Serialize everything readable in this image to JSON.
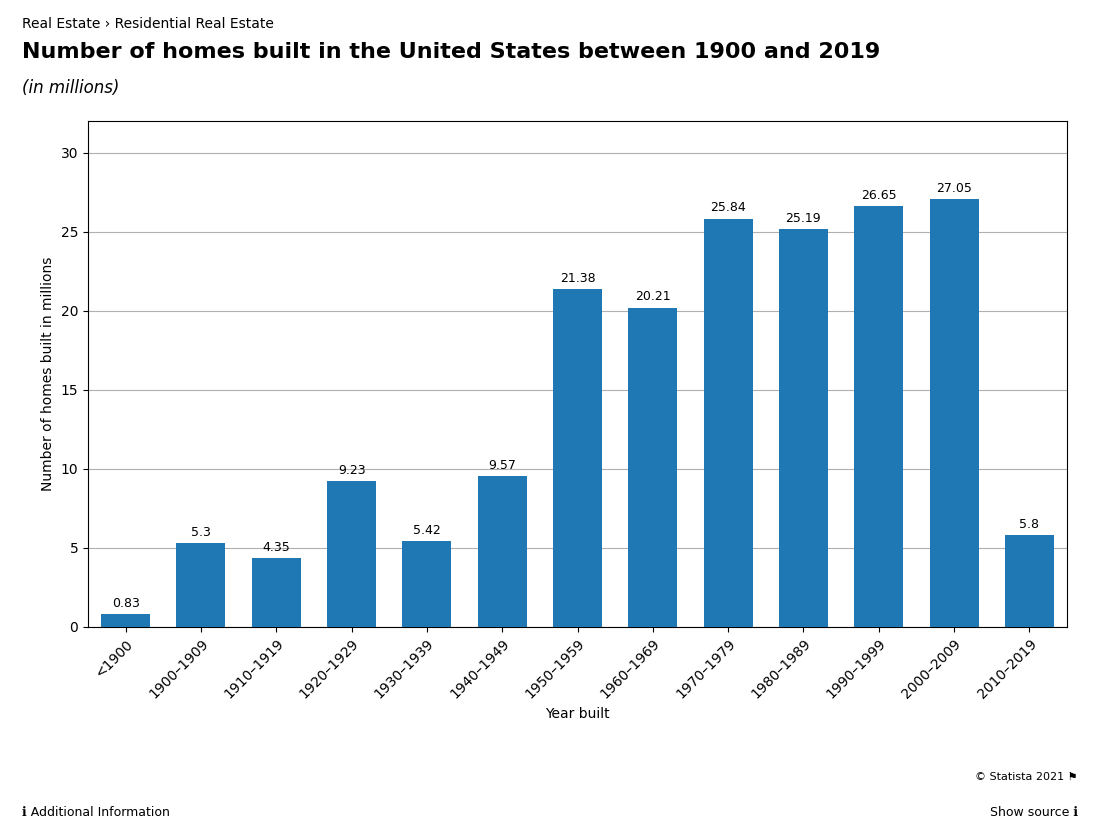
{
  "chart_data": {
    "type": "bar",
    "title": "Number of homes built in the United States between 1900 and 2019",
    "subtitle": "(in millions)",
    "annotations": [
      "Real Estate › Residential Real Estate",
      "© Statista 2021 ⚑",
      "ℹ Additional Information",
      "Show source ℹ"
    ],
    "x_label": "Year built",
    "y_label": "Number of homes built in millions",
    "categories": [
      "<1900",
      "1900–1909",
      "1910–1919",
      "1920–1929",
      "1930–1939",
      "1940–1949",
      "1950–1959",
      "1960–1969",
      "1970–1979",
      "1980–1989",
      "1990–1999",
      "2000–2009",
      "2010–2019"
    ],
    "values": [
      0.83,
      5.3,
      4.35,
      9.23,
      5.42,
      9.57,
      21.38,
      20.21,
      25.84,
      25.19,
      26.65,
      27.05,
      5.8
    ],
    "ylim": [
      0,
      32
    ],
    "yticks": [
      0,
      5,
      10,
      15,
      20,
      25,
      30
    ],
    "grid": true,
    "data_labels": true
  }
}
